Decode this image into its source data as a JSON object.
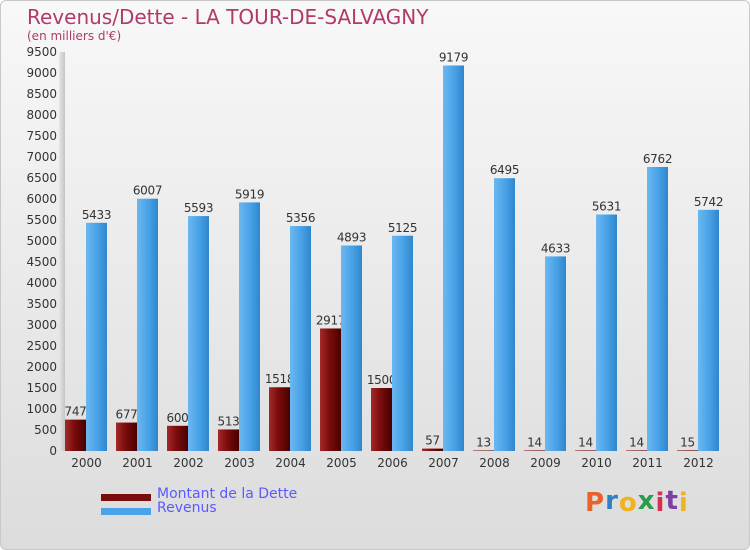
{
  "header": {
    "title": "Revenus/Dette - LA TOUR-DE-SALVAGNY",
    "subtitle": "(en milliers d'€)"
  },
  "legend": {
    "items": [
      {
        "label": "Montant de la Dette",
        "color": "#7a0c0c"
      },
      {
        "label": "Revenus",
        "color": "#4aa3e8"
      }
    ]
  },
  "watermark": {
    "letters": [
      "P",
      "r",
      "o",
      "x",
      "i",
      "t",
      "i"
    ],
    "colors": [
      "#e8622a",
      "#2e7fc4",
      "#f0b21f",
      "#2a9d4a",
      "#d6304f",
      "#7d3fa3",
      "#f0b21f"
    ]
  },
  "chart_data": {
    "type": "bar",
    "categories": [
      "2000",
      "2001",
      "2002",
      "2003",
      "2004",
      "2005",
      "2006",
      "2007",
      "2008",
      "2009",
      "2010",
      "2011",
      "2012"
    ],
    "series": [
      {
        "name": "Montant de la Dette",
        "color": "#7a0c0c",
        "values": [
          747,
          677,
          600,
          513,
          1518,
          2917,
          1500,
          57,
          13,
          14,
          14,
          14,
          15
        ]
      },
      {
        "name": "Revenus",
        "color": "#4aa3e8",
        "values": [
          5433,
          6007,
          5593,
          5919,
          5356,
          4893,
          5125,
          9179,
          6495,
          4633,
          5631,
          6762,
          5742
        ]
      }
    ],
    "yticks": [
      0,
      500,
      1000,
      1500,
      2000,
      2500,
      3000,
      3500,
      4000,
      4500,
      5000,
      5500,
      6000,
      6500,
      7000,
      7500,
      8000,
      8500,
      9000,
      9500
    ],
    "ylim": [
      0,
      9500
    ],
    "grid": false,
    "legend_position": "bottom-left"
  }
}
